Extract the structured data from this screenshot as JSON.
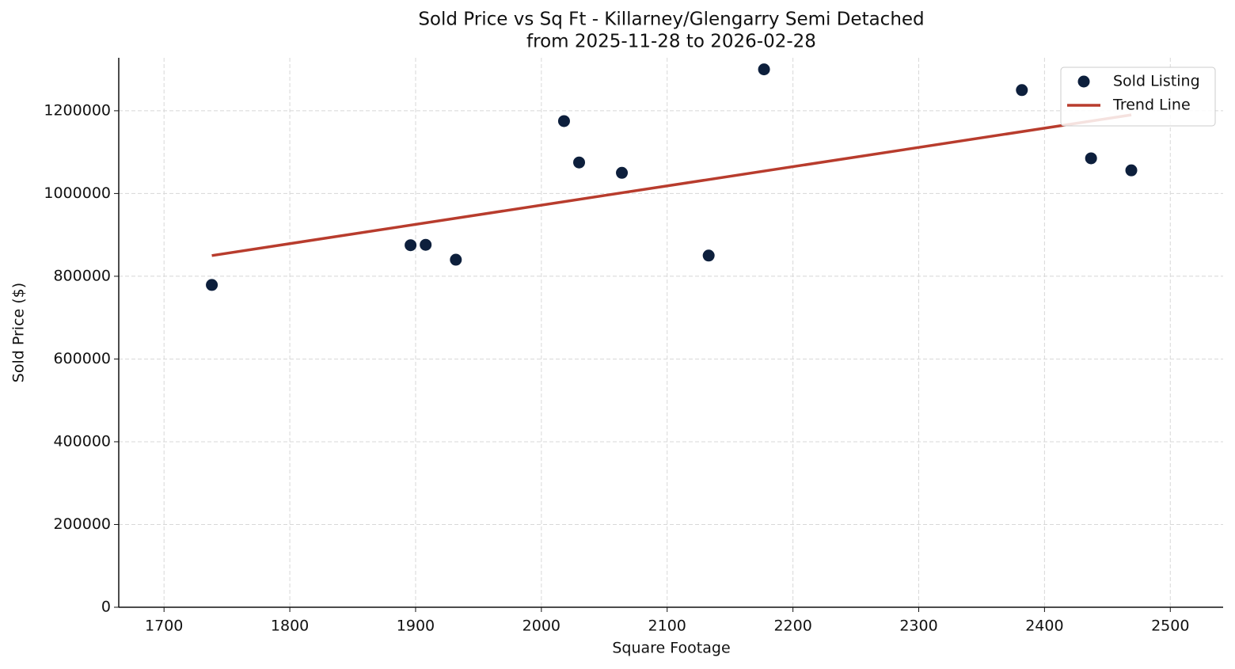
{
  "chart_data": {
    "type": "scatter",
    "title": "Sold Price vs Sq Ft - Killarney/Glengarry Semi Detached",
    "subtitle": "from 2025-11-28 to 2026-02-28",
    "x_label": "Square Footage",
    "y_label": "Sold Price ($)",
    "xlim": [
      1664,
      2542
    ],
    "ylim": [
      0,
      1328000
    ],
    "xticks": [
      1700,
      1800,
      1900,
      2000,
      2100,
      2200,
      2300,
      2400,
      2500
    ],
    "yticks": [
      0,
      200000,
      400000,
      600000,
      800000,
      1000000,
      1200000
    ],
    "grid": true,
    "legend": "upper right",
    "series": [
      {
        "name": "Sold Listing",
        "type": "scatter",
        "color": "#0d1f3c",
        "x": [
          1738,
          1896,
          1908,
          1932,
          2018,
          2030,
          2064,
          2133,
          2177,
          2382,
          2437,
          2469
        ],
        "values": [
          779000,
          875000,
          876000,
          840000,
          1175000,
          1075000,
          1050000,
          850000,
          1300000,
          1250000,
          1085000,
          1056000
        ]
      },
      {
        "name": "Trend Line",
        "type": "line",
        "color": "#b83c2d",
        "x": [
          1738,
          2469
        ],
        "values": [
          850000,
          1190000
        ]
      }
    ]
  }
}
